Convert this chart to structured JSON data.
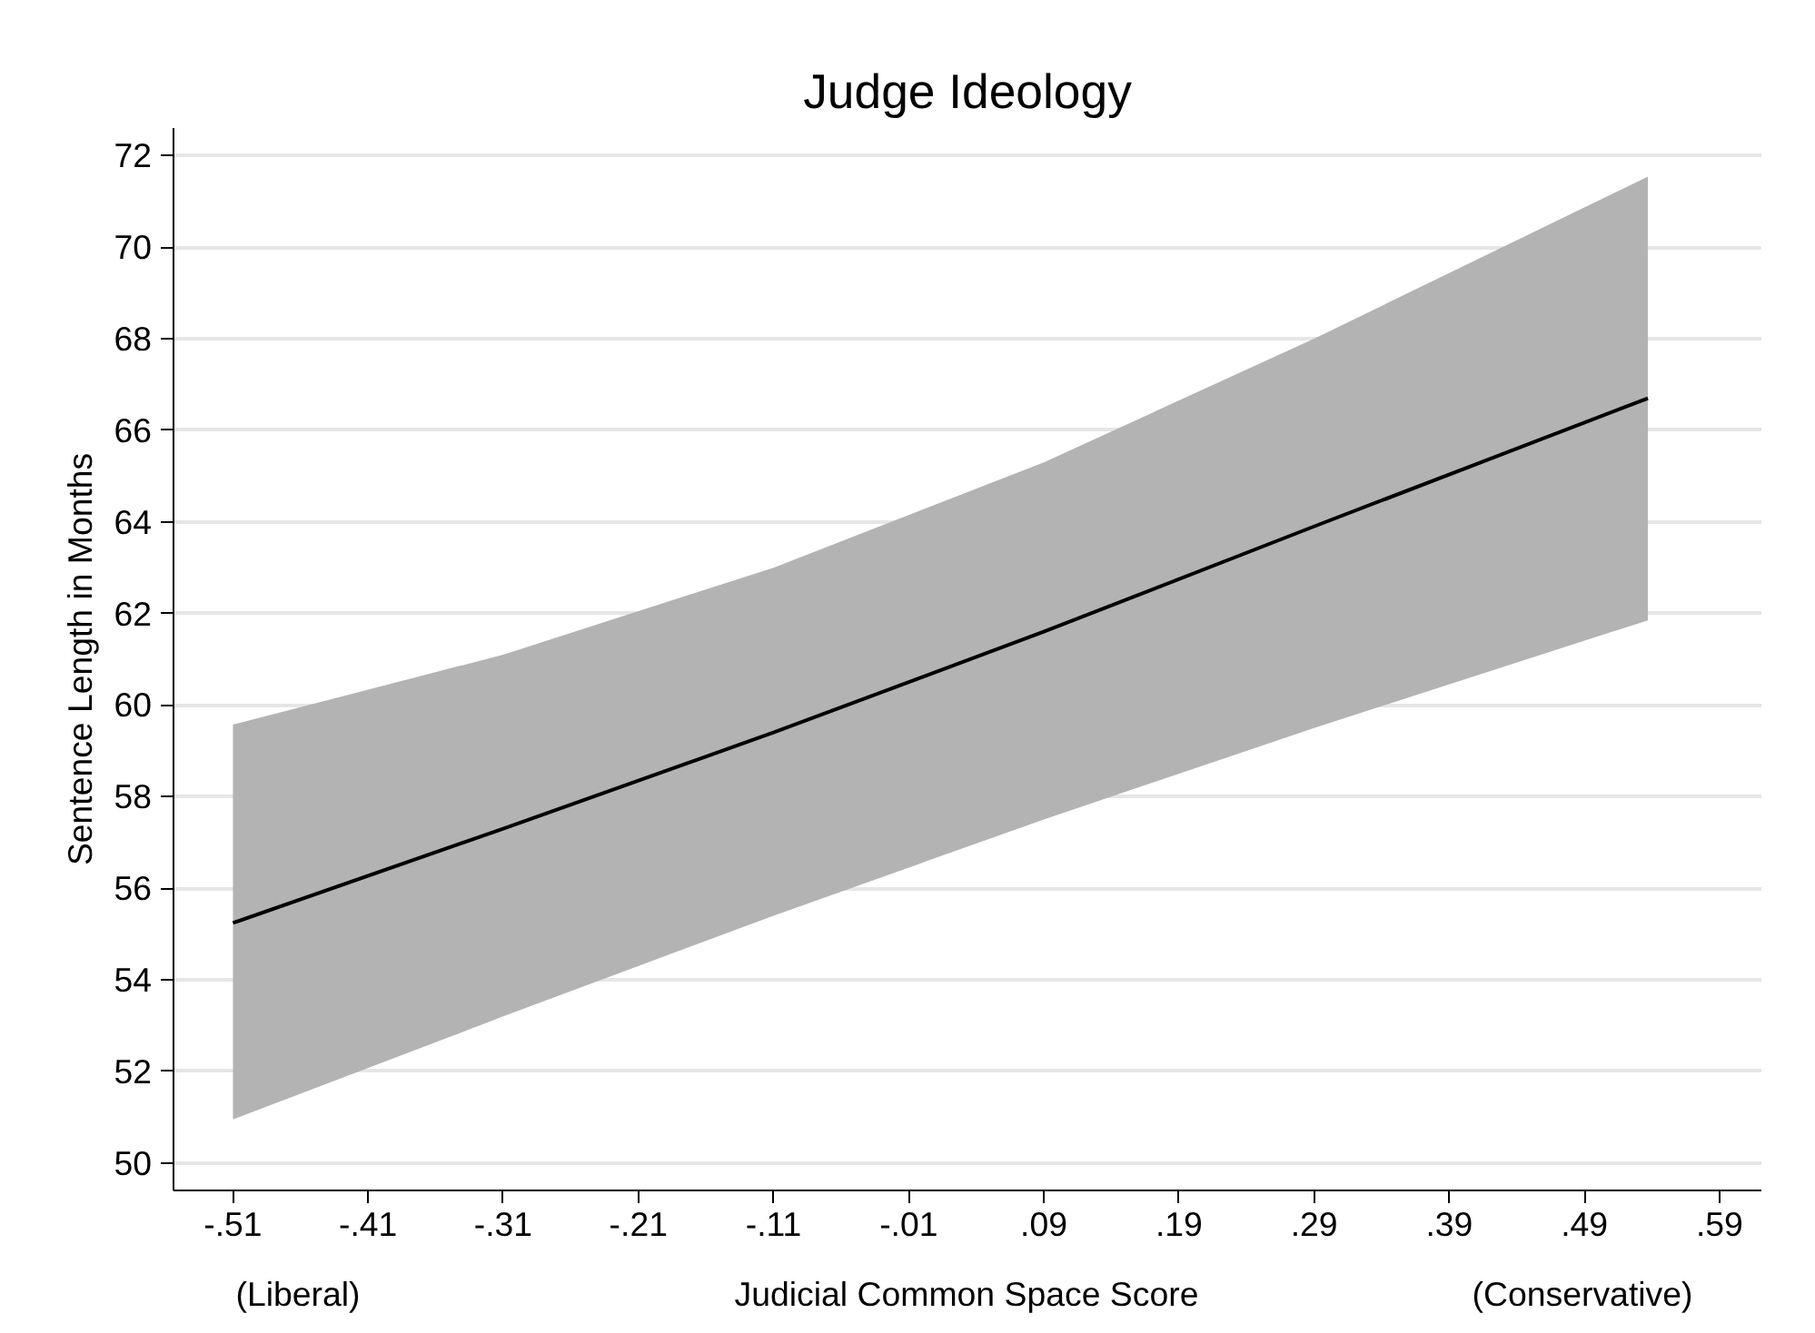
{
  "chart_data": {
    "type": "line",
    "title": "Judge Ideology",
    "xlabel": "Judicial Common Space Score",
    "ylabel": "Sentence Length in Months",
    "x": [
      -0.51,
      -0.31,
      -0.11,
      0.09,
      0.29,
      0.537
    ],
    "series": [
      {
        "color": "#000000",
        "values": [
          55.24,
          57.3,
          59.4,
          61.6,
          63.9,
          66.7
        ],
        "lower": [
          50.95,
          53.2,
          55.4,
          57.5,
          59.5,
          61.85
        ],
        "upper": [
          59.57,
          61.1,
          63.0,
          65.3,
          68.0,
          71.54
        ]
      }
    ],
    "xlim": [
      -0.554,
      0.621
    ],
    "ylim": [
      49.4,
      72.6
    ],
    "xticks": [
      {
        "value": -0.51,
        "label": "-.51"
      },
      {
        "value": -0.41,
        "label": "-.41"
      },
      {
        "value": -0.31,
        "label": "-.31"
      },
      {
        "value": -0.21,
        "label": "-.21"
      },
      {
        "value": -0.11,
        "label": "-.11"
      },
      {
        "value": -0.01,
        "label": "-.01"
      },
      {
        "value": 0.09,
        "label": ".09"
      },
      {
        "value": 0.19,
        "label": ".19"
      },
      {
        "value": 0.29,
        "label": ".29"
      },
      {
        "value": 0.39,
        "label": ".39"
      },
      {
        "value": 0.49,
        "label": ".49"
      },
      {
        "value": 0.59,
        "label": ".59"
      }
    ],
    "yticks": [
      50,
      52,
      54,
      56,
      58,
      60,
      62,
      64,
      66,
      68,
      70,
      72
    ],
    "grid": "y",
    "marker": "none",
    "line_style": "solid",
    "annotations": [
      "(Liberal)",
      "(Conservative)"
    ]
  }
}
